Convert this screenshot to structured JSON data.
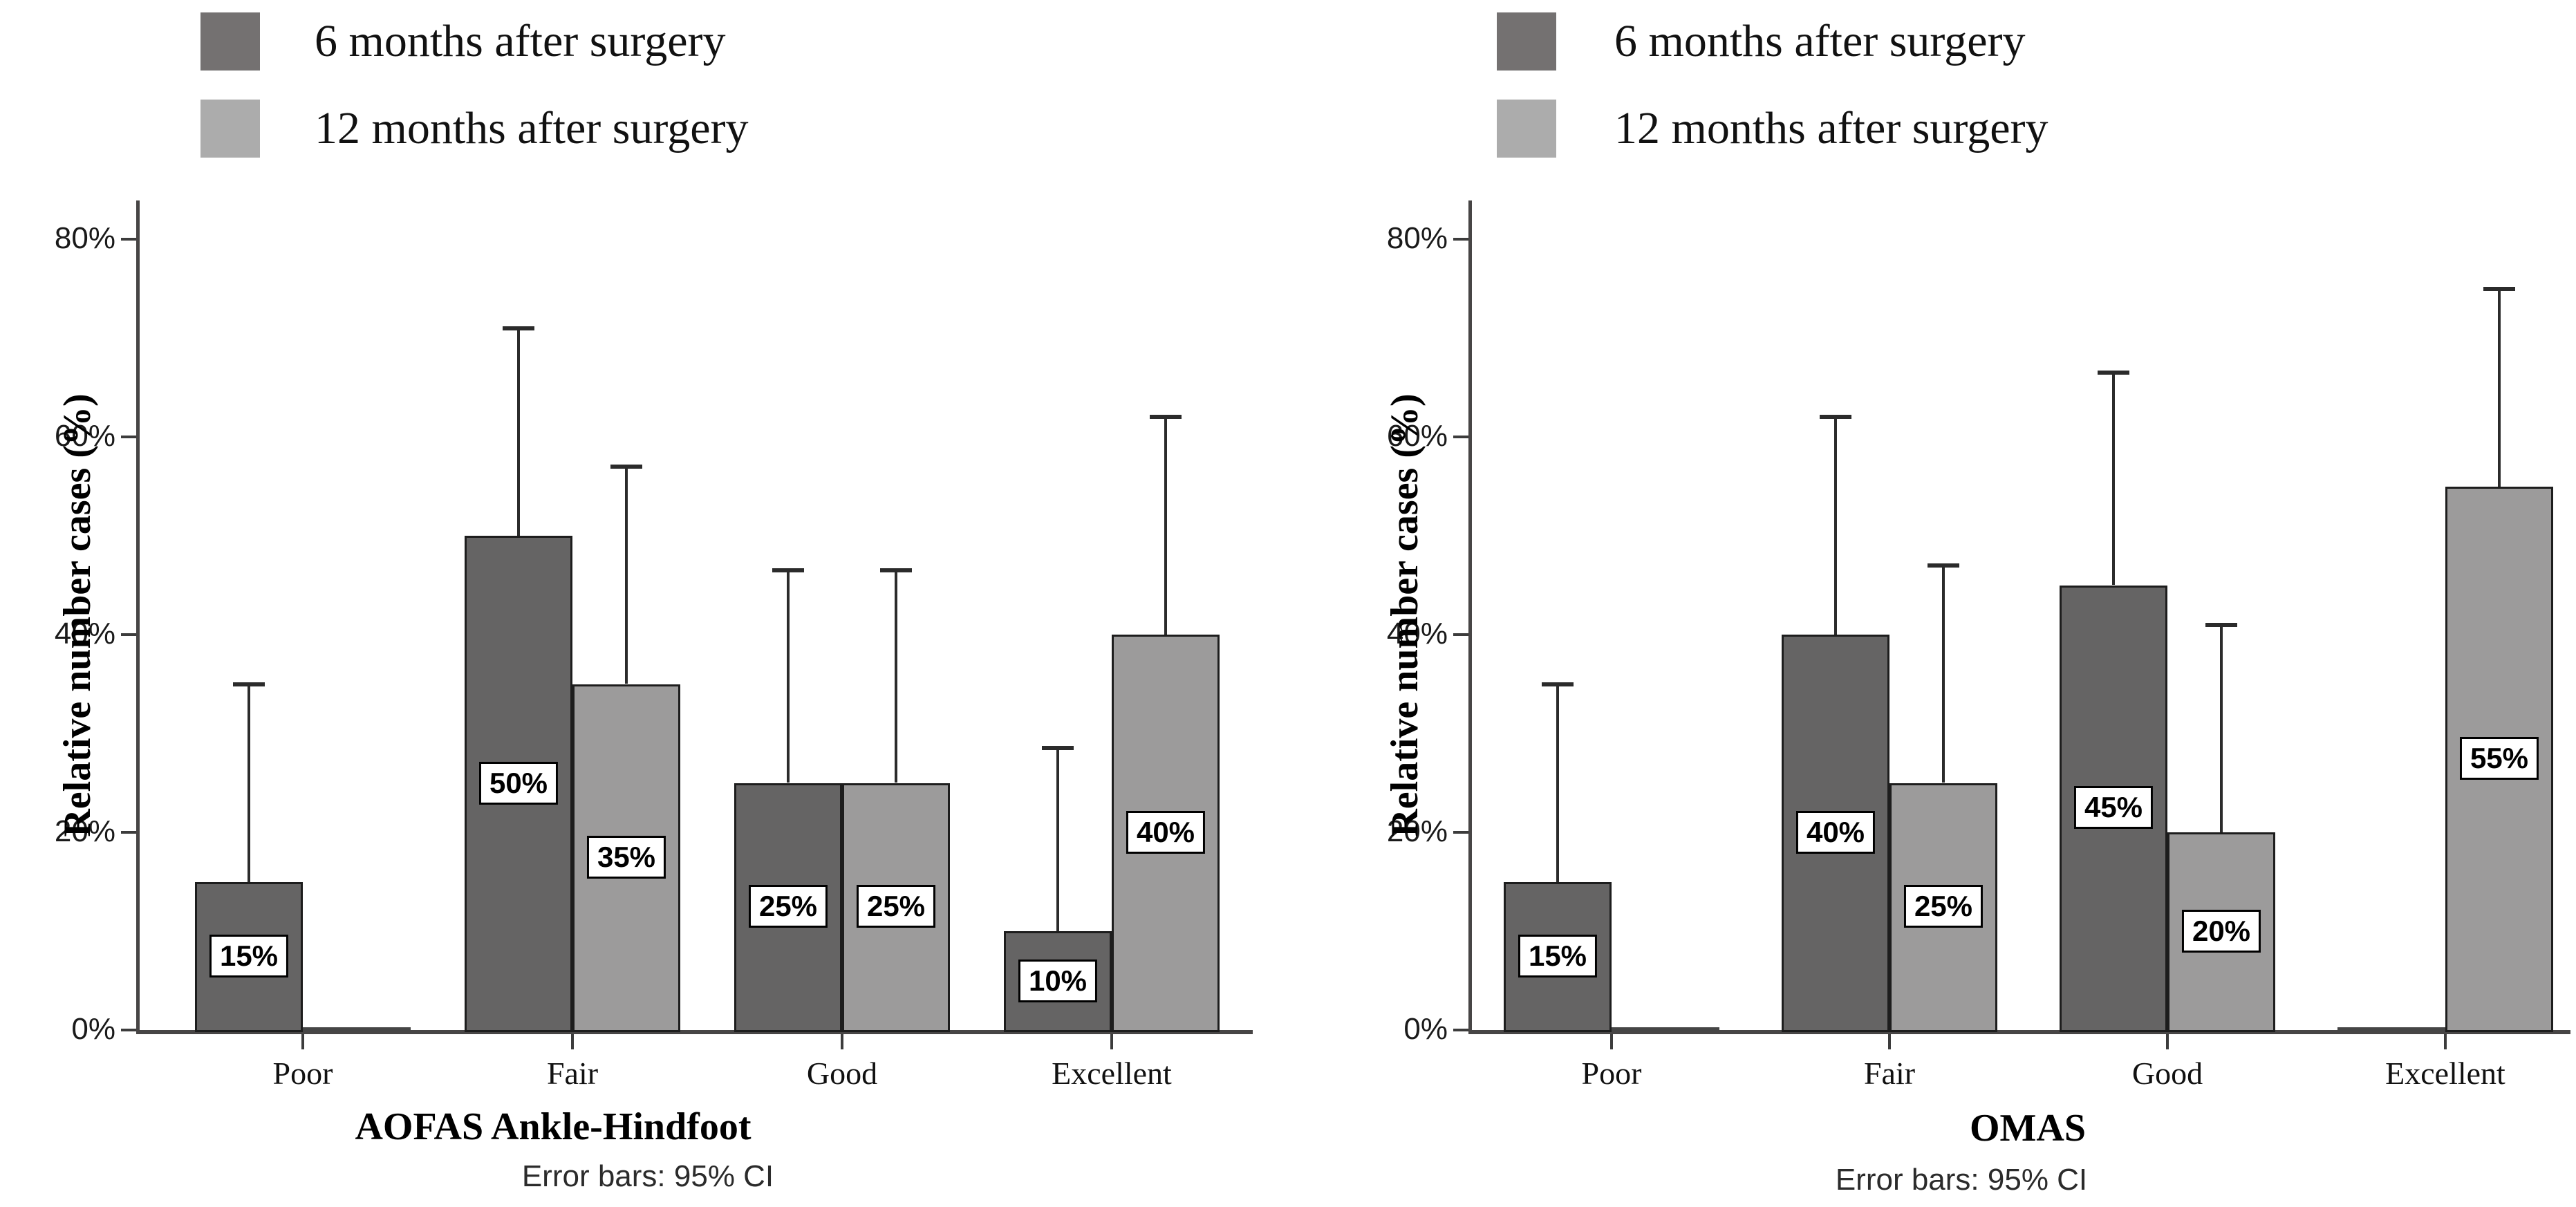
{
  "figure": {
    "legend_items": [
      {
        "label": "6 months after surgery",
        "swatch_color": "#747171"
      },
      {
        "label": "12 months after surgery",
        "swatch_color": "#acacac"
      }
    ],
    "error_note": "Error bars: 95% CI"
  },
  "chart_data": [
    {
      "type": "bar",
      "title": "AOFAS Ankle-Hindfoot",
      "ylabel": "Relative number cases (%)",
      "xlabel": "AOFAS Ankle-Hindfoot",
      "footnote": "Error bars: 95% CI",
      "categories": [
        "Poor",
        "Fair",
        "Good",
        "Excellent"
      ],
      "ylim": [
        0,
        80
      ],
      "ytick_labels": [
        "0%",
        "20%",
        "40%",
        "60%",
        "80%"
      ],
      "grid": false,
      "legend_position": "top-left",
      "error_bars": "95% CI, upper whisker only",
      "series": [
        {
          "name": "6 months after surgery",
          "color": "#656464",
          "values": [
            15,
            50,
            25,
            10
          ],
          "data_labels": [
            "15%",
            "50%",
            "25%",
            "10%"
          ],
          "ci_upper": [
            35,
            71,
            46.5,
            28.5
          ]
        },
        {
          "name": "12 months after surgery",
          "color": "#9c9b9b",
          "values": [
            0,
            35,
            25,
            40
          ],
          "data_labels": [
            null,
            "35%",
            "25%",
            "40%"
          ],
          "ci_upper": [
            null,
            57,
            46.5,
            62
          ]
        }
      ]
    },
    {
      "type": "bar",
      "title": "OMAS",
      "ylabel": "Relative number cases (%)",
      "xlabel": "OMAS",
      "footnote": "Error bars: 95% CI",
      "categories": [
        "Poor",
        "Fair",
        "Good",
        "Excellent"
      ],
      "ylim": [
        0,
        80
      ],
      "ytick_labels": [
        "0%",
        "20%",
        "40%",
        "60%",
        "80%"
      ],
      "grid": false,
      "legend_position": "top-left",
      "error_bars": "95% CI, upper whisker only",
      "series": [
        {
          "name": "6 months after surgery",
          "color": "#656464",
          "values": [
            15,
            40,
            45,
            0
          ],
          "data_labels": [
            "15%",
            "40%",
            "45%",
            null
          ],
          "ci_upper": [
            35,
            62,
            66.5,
            null
          ]
        },
        {
          "name": "12 months after surgery",
          "color": "#9c9b9b",
          "values": [
            0,
            25,
            20,
            55
          ],
          "data_labels": [
            null,
            "25%",
            "20%",
            "55%"
          ],
          "ci_upper": [
            null,
            47,
            41,
            75
          ]
        }
      ]
    }
  ]
}
